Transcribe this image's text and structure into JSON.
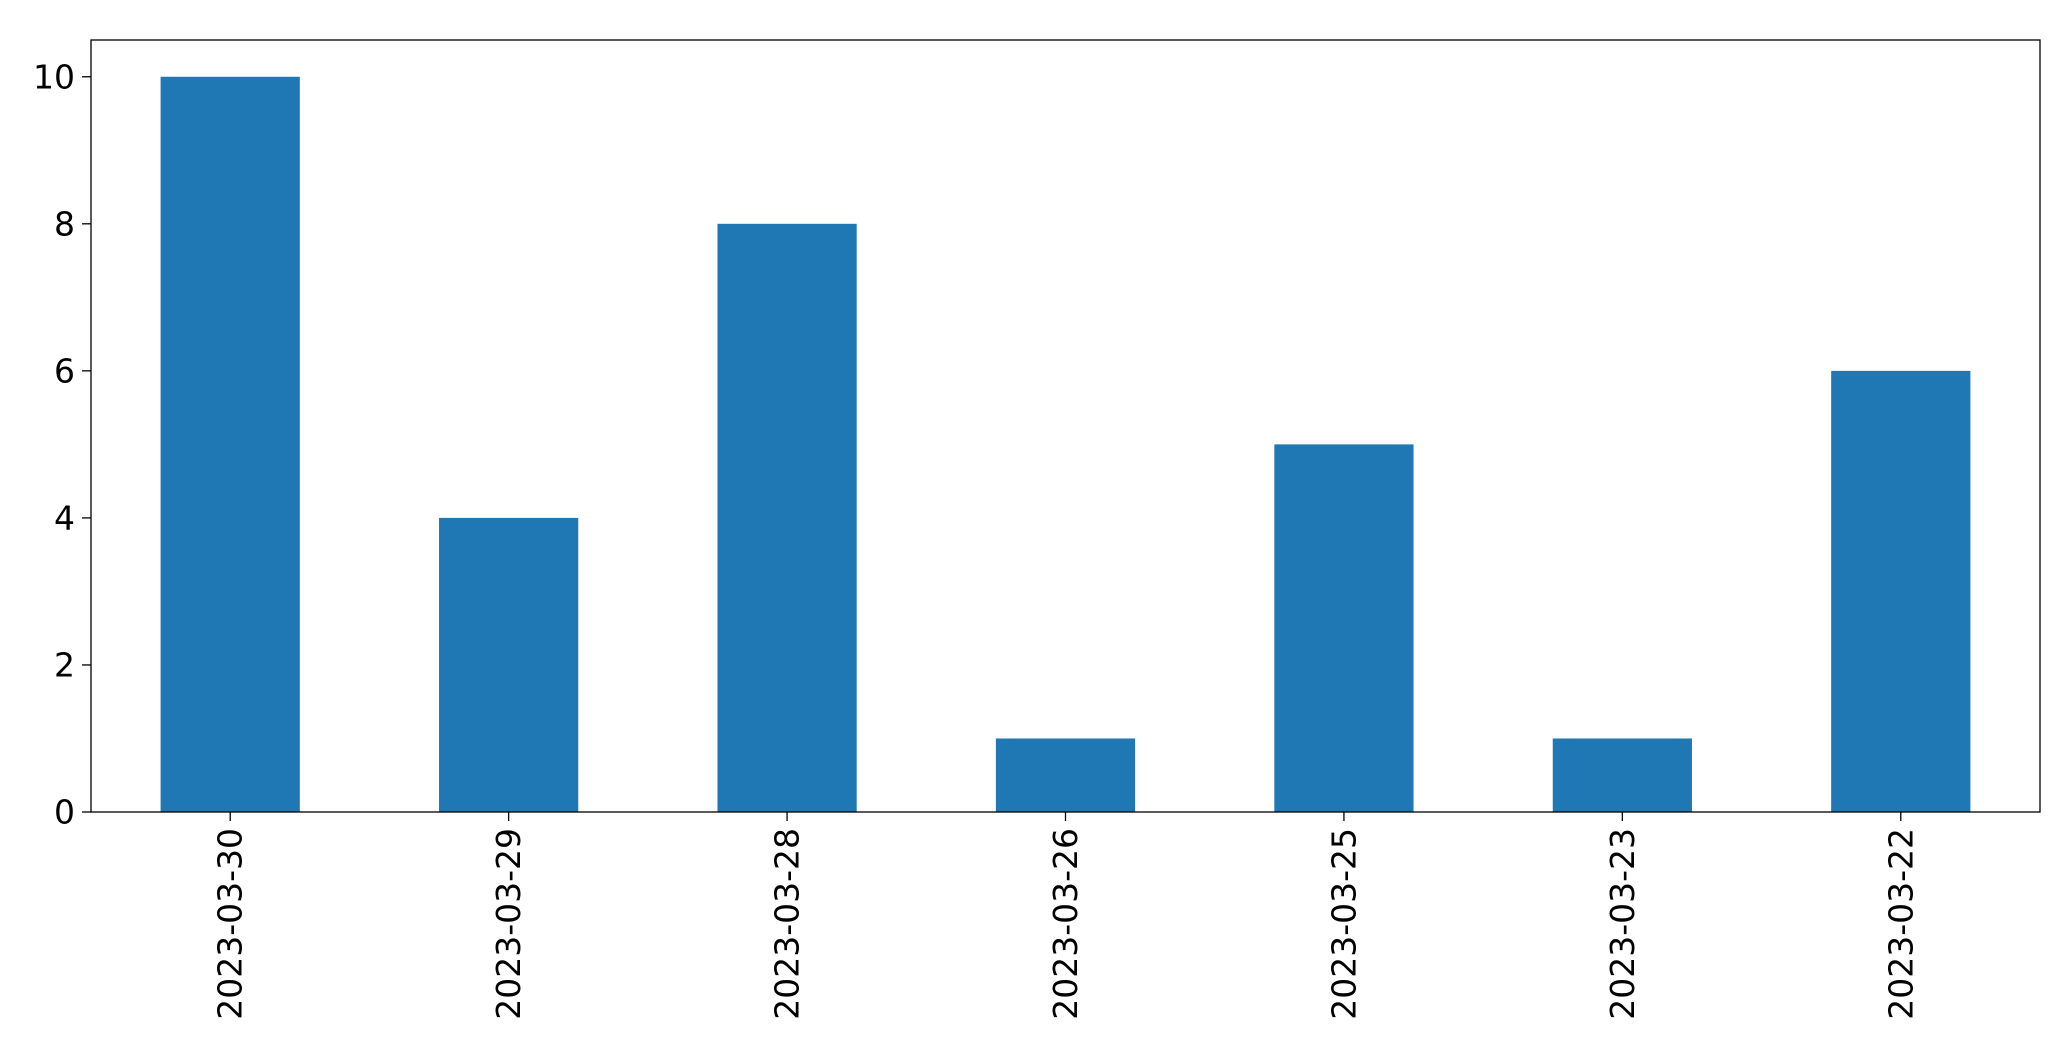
{
  "chart_data": {
    "type": "bar",
    "categories": [
      "2023-03-30",
      "2023-03-29",
      "2023-03-28",
      "2023-03-26",
      "2023-03-25",
      "2023-03-23",
      "2023-03-22"
    ],
    "values": [
      10,
      4,
      8,
      1,
      5,
      1,
      6
    ],
    "yticks": [
      0,
      2,
      4,
      6,
      8,
      10
    ],
    "ylim": [
      0,
      10.5
    ],
    "bar_color": "#1f77b4",
    "grid": false,
    "title": "",
    "xlabel": "",
    "ylabel": ""
  }
}
